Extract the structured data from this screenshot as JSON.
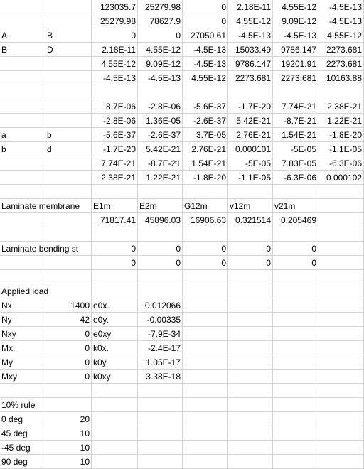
{
  "rows": [
    [
      {
        "c": "",
        "k": "t"
      },
      {
        "c": "",
        "k": "t"
      },
      {
        "c": "123035.7",
        "k": "n"
      },
      {
        "c": "25279.98",
        "k": "n"
      },
      {
        "c": "0",
        "k": "n"
      },
      {
        "c": "2.18E-11",
        "k": "n"
      },
      {
        "c": "4.55E-12",
        "k": "n"
      },
      {
        "c": "-4.5E-13",
        "k": "n"
      }
    ],
    [
      {
        "c": "",
        "k": "t"
      },
      {
        "c": "",
        "k": "t"
      },
      {
        "c": "25279.98",
        "k": "n"
      },
      {
        "c": "78627.9",
        "k": "n"
      },
      {
        "c": "0",
        "k": "n"
      },
      {
        "c": "4.55E-12",
        "k": "n"
      },
      {
        "c": "9.09E-12",
        "k": "n"
      },
      {
        "c": "-4.5E-13",
        "k": "n"
      }
    ],
    [
      {
        "c": "A",
        "k": "t"
      },
      {
        "c": "B",
        "k": "t"
      },
      {
        "c": "0",
        "k": "n"
      },
      {
        "c": "0",
        "k": "n"
      },
      {
        "c": "27050.61",
        "k": "n"
      },
      {
        "c": "-4.5E-13",
        "k": "n"
      },
      {
        "c": "-4.5E-13",
        "k": "n"
      },
      {
        "c": "4.55E-12",
        "k": "n"
      }
    ],
    [
      {
        "c": "B",
        "k": "t"
      },
      {
        "c": "D",
        "k": "t"
      },
      {
        "c": "2.18E-11",
        "k": "n"
      },
      {
        "c": "4.55E-12",
        "k": "n"
      },
      {
        "c": "-4.5E-13",
        "k": "n"
      },
      {
        "c": "15033.49",
        "k": "n"
      },
      {
        "c": "9786.147",
        "k": "n"
      },
      {
        "c": "2273.681",
        "k": "n"
      }
    ],
    [
      {
        "c": "",
        "k": "t"
      },
      {
        "c": "",
        "k": "t"
      },
      {
        "c": "4.55E-12",
        "k": "n"
      },
      {
        "c": "9.09E-12",
        "k": "n"
      },
      {
        "c": "-4.5E-13",
        "k": "n"
      },
      {
        "c": "9786.147",
        "k": "n"
      },
      {
        "c": "19201.91",
        "k": "n"
      },
      {
        "c": "2273.681",
        "k": "n"
      }
    ],
    [
      {
        "c": "",
        "k": "t"
      },
      {
        "c": "",
        "k": "t"
      },
      {
        "c": "-4.5E-13",
        "k": "n"
      },
      {
        "c": "-4.5E-13",
        "k": "n"
      },
      {
        "c": "4.55E-12",
        "k": "n"
      },
      {
        "c": "2273.681",
        "k": "n"
      },
      {
        "c": "2273.681",
        "k": "n"
      },
      {
        "c": "10163.88",
        "k": "n"
      }
    ],
    [
      {
        "c": "",
        "k": "t"
      },
      {
        "c": "",
        "k": "t"
      },
      {
        "c": "",
        "k": "t"
      },
      {
        "c": "",
        "k": "t"
      },
      {
        "c": "",
        "k": "t"
      },
      {
        "c": "",
        "k": "t"
      },
      {
        "c": "",
        "k": "t"
      },
      {
        "c": "",
        "k": "t"
      }
    ],
    [
      {
        "c": "",
        "k": "t"
      },
      {
        "c": "",
        "k": "t"
      },
      {
        "c": "8.7E-06",
        "k": "n"
      },
      {
        "c": "-2.8E-06",
        "k": "n"
      },
      {
        "c": "-5.6E-37",
        "k": "n"
      },
      {
        "c": "-1.7E-20",
        "k": "n"
      },
      {
        "c": "7.74E-21",
        "k": "n"
      },
      {
        "c": "2.38E-21",
        "k": "n"
      }
    ],
    [
      {
        "c": "",
        "k": "t"
      },
      {
        "c": "",
        "k": "t"
      },
      {
        "c": "-2.8E-06",
        "k": "n"
      },
      {
        "c": "1.36E-05",
        "k": "n"
      },
      {
        "c": "-2.6E-37",
        "k": "n"
      },
      {
        "c": "5.42E-21",
        "k": "n"
      },
      {
        "c": "-8.7E-21",
        "k": "n"
      },
      {
        "c": "1.22E-21",
        "k": "n"
      }
    ],
    [
      {
        "c": "a",
        "k": "t"
      },
      {
        "c": "b",
        "k": "t"
      },
      {
        "c": "-5.6E-37",
        "k": "n"
      },
      {
        "c": "-2.6E-37",
        "k": "n"
      },
      {
        "c": "3.7E-05",
        "k": "n"
      },
      {
        "c": "2.76E-21",
        "k": "n"
      },
      {
        "c": "1.54E-21",
        "k": "n"
      },
      {
        "c": "-1.8E-20",
        "k": "n"
      }
    ],
    [
      {
        "c": "b",
        "k": "t"
      },
      {
        "c": "d",
        "k": "t"
      },
      {
        "c": "-1.7E-20",
        "k": "n"
      },
      {
        "c": "5.42E-21",
        "k": "n"
      },
      {
        "c": "2.76E-21",
        "k": "n"
      },
      {
        "c": "0.000101",
        "k": "n"
      },
      {
        "c": "-5E-05",
        "k": "n"
      },
      {
        "c": "-1.1E-05",
        "k": "n"
      }
    ],
    [
      {
        "c": "",
        "k": "t"
      },
      {
        "c": "",
        "k": "t"
      },
      {
        "c": "7.74E-21",
        "k": "n"
      },
      {
        "c": "-8.7E-21",
        "k": "n"
      },
      {
        "c": "1.54E-21",
        "k": "n"
      },
      {
        "c": "-5E-05",
        "k": "n"
      },
      {
        "c": "7.83E-05",
        "k": "n"
      },
      {
        "c": "-6.3E-06",
        "k": "n"
      }
    ],
    [
      {
        "c": "",
        "k": "t"
      },
      {
        "c": "",
        "k": "t"
      },
      {
        "c": "2.38E-21",
        "k": "n"
      },
      {
        "c": "1.22E-21",
        "k": "n"
      },
      {
        "c": "-1.8E-20",
        "k": "n"
      },
      {
        "c": "-1.1E-05",
        "k": "n"
      },
      {
        "c": "-6.3E-06",
        "k": "n"
      },
      {
        "c": "0.000102",
        "k": "n"
      }
    ],
    [
      {
        "c": "",
        "k": "t"
      },
      {
        "c": "",
        "k": "t"
      },
      {
        "c": "",
        "k": "t"
      },
      {
        "c": "",
        "k": "t"
      },
      {
        "c": "",
        "k": "t"
      },
      {
        "c": "",
        "k": "t"
      },
      {
        "c": "",
        "k": "t"
      },
      {
        "c": "",
        "k": "t"
      }
    ],
    [
      {
        "c": "Laminate membrane",
        "k": "o"
      },
      {
        "c": "",
        "k": "t"
      },
      {
        "c": "E1m",
        "k": "t"
      },
      {
        "c": "E2m",
        "k": "t"
      },
      {
        "c": "G12m",
        "k": "t"
      },
      {
        "c": "v12m",
        "k": "t"
      },
      {
        "c": "v21m",
        "k": "t"
      },
      {
        "c": "",
        "k": "t"
      }
    ],
    [
      {
        "c": "",
        "k": "t"
      },
      {
        "c": "",
        "k": "t"
      },
      {
        "c": "71817.41",
        "k": "n"
      },
      {
        "c": "45896.03",
        "k": "n"
      },
      {
        "c": "16906.63",
        "k": "n"
      },
      {
        "c": "0.321514",
        "k": "n"
      },
      {
        "c": "0.205469",
        "k": "n"
      },
      {
        "c": "",
        "k": "t"
      }
    ],
    [
      {
        "c": "",
        "k": "t"
      },
      {
        "c": "",
        "k": "t"
      },
      {
        "c": "",
        "k": "t"
      },
      {
        "c": "",
        "k": "t"
      },
      {
        "c": "",
        "k": "t"
      },
      {
        "c": "",
        "k": "t"
      },
      {
        "c": "",
        "k": "t"
      },
      {
        "c": "",
        "k": "t"
      }
    ],
    [
      {
        "c": "Laminate bending st",
        "k": "o"
      },
      {
        "c": "",
        "k": "t"
      },
      {
        "c": "0",
        "k": "n"
      },
      {
        "c": "0",
        "k": "n"
      },
      {
        "c": "0",
        "k": "n"
      },
      {
        "c": "0",
        "k": "n"
      },
      {
        "c": "0",
        "k": "n"
      },
      {
        "c": "",
        "k": "t"
      }
    ],
    [
      {
        "c": "",
        "k": "t"
      },
      {
        "c": "",
        "k": "t"
      },
      {
        "c": "0",
        "k": "n"
      },
      {
        "c": "0",
        "k": "n"
      },
      {
        "c": "0",
        "k": "n"
      },
      {
        "c": "0",
        "k": "n"
      },
      {
        "c": "0",
        "k": "n"
      },
      {
        "c": "",
        "k": "t"
      }
    ],
    [
      {
        "c": "",
        "k": "t"
      },
      {
        "c": "",
        "k": "t"
      },
      {
        "c": "",
        "k": "t"
      },
      {
        "c": "",
        "k": "t"
      },
      {
        "c": "",
        "k": "t"
      },
      {
        "c": "",
        "k": "t"
      },
      {
        "c": "",
        "k": "t"
      },
      {
        "c": "",
        "k": "t"
      }
    ],
    [
      {
        "c": "Applied load",
        "k": "o"
      },
      {
        "c": "",
        "k": "t"
      },
      {
        "c": "",
        "k": "t"
      },
      {
        "c": "",
        "k": "t"
      },
      {
        "c": "",
        "k": "t"
      },
      {
        "c": "",
        "k": "t"
      },
      {
        "c": "",
        "k": "t"
      },
      {
        "c": "",
        "k": "t"
      }
    ],
    [
      {
        "c": "Nx",
        "k": "t"
      },
      {
        "c": "1400",
        "k": "n"
      },
      {
        "c": "e0x.",
        "k": "t"
      },
      {
        "c": "0.012066",
        "k": "n"
      },
      {
        "c": "",
        "k": "t"
      },
      {
        "c": "",
        "k": "t"
      },
      {
        "c": "",
        "k": "t"
      },
      {
        "c": "",
        "k": "t"
      }
    ],
    [
      {
        "c": "Ny",
        "k": "t"
      },
      {
        "c": "42",
        "k": "n"
      },
      {
        "c": "e0y.",
        "k": "t"
      },
      {
        "c": "-0.00335",
        "k": "n"
      },
      {
        "c": "",
        "k": "t"
      },
      {
        "c": "",
        "k": "t"
      },
      {
        "c": "",
        "k": "t"
      },
      {
        "c": "",
        "k": "t"
      }
    ],
    [
      {
        "c": "Nxy",
        "k": "t"
      },
      {
        "c": "0",
        "k": "n"
      },
      {
        "c": "e0xy",
        "k": "t"
      },
      {
        "c": "-7.9E-34",
        "k": "n"
      },
      {
        "c": "",
        "k": "t"
      },
      {
        "c": "",
        "k": "t"
      },
      {
        "c": "",
        "k": "t"
      },
      {
        "c": "",
        "k": "t"
      }
    ],
    [
      {
        "c": "Mx.",
        "k": "t"
      },
      {
        "c": "0",
        "k": "n"
      },
      {
        "c": "k0x.",
        "k": "t"
      },
      {
        "c": "-2.4E-17",
        "k": "n"
      },
      {
        "c": "",
        "k": "t"
      },
      {
        "c": "",
        "k": "t"
      },
      {
        "c": "",
        "k": "t"
      },
      {
        "c": "",
        "k": "t"
      }
    ],
    [
      {
        "c": "My",
        "k": "t"
      },
      {
        "c": "0",
        "k": "n"
      },
      {
        "c": "k0y",
        "k": "t"
      },
      {
        "c": "1.05E-17",
        "k": "n"
      },
      {
        "c": "",
        "k": "t"
      },
      {
        "c": "",
        "k": "t"
      },
      {
        "c": "",
        "k": "t"
      },
      {
        "c": "",
        "k": "t"
      }
    ],
    [
      {
        "c": "Mxy",
        "k": "t"
      },
      {
        "c": "0",
        "k": "n"
      },
      {
        "c": "k0xy",
        "k": "t"
      },
      {
        "c": "3.38E-18",
        "k": "n"
      },
      {
        "c": "",
        "k": "t"
      },
      {
        "c": "",
        "k": "t"
      },
      {
        "c": "",
        "k": "t"
      },
      {
        "c": "",
        "k": "t"
      }
    ],
    [
      {
        "c": "",
        "k": "t"
      },
      {
        "c": "",
        "k": "t"
      },
      {
        "c": "",
        "k": "t"
      },
      {
        "c": "",
        "k": "t"
      },
      {
        "c": "",
        "k": "t"
      },
      {
        "c": "",
        "k": "t"
      },
      {
        "c": "",
        "k": "t"
      },
      {
        "c": "",
        "k": "t"
      }
    ],
    [
      {
        "c": "10% rule",
        "k": "o"
      },
      {
        "c": "",
        "k": "t"
      },
      {
        "c": "",
        "k": "t"
      },
      {
        "c": "",
        "k": "t"
      },
      {
        "c": "",
        "k": "t"
      },
      {
        "c": "",
        "k": "t"
      },
      {
        "c": "",
        "k": "t"
      },
      {
        "c": "",
        "k": "t"
      }
    ],
    [
      {
        "c": "0 deg",
        "k": "t"
      },
      {
        "c": "20",
        "k": "n"
      },
      {
        "c": "",
        "k": "t"
      },
      {
        "c": "",
        "k": "t"
      },
      {
        "c": "",
        "k": "t"
      },
      {
        "c": "",
        "k": "t"
      },
      {
        "c": "",
        "k": "t"
      },
      {
        "c": "",
        "k": "t"
      }
    ],
    [
      {
        "c": "45 deg",
        "k": "t"
      },
      {
        "c": "10",
        "k": "n"
      },
      {
        "c": "",
        "k": "t"
      },
      {
        "c": "",
        "k": "t"
      },
      {
        "c": "",
        "k": "t"
      },
      {
        "c": "",
        "k": "t"
      },
      {
        "c": "",
        "k": "t"
      },
      {
        "c": "",
        "k": "t"
      }
    ],
    [
      {
        "c": "-45 deg",
        "k": "t"
      },
      {
        "c": "10",
        "k": "n"
      },
      {
        "c": "",
        "k": "t"
      },
      {
        "c": "",
        "k": "t"
      },
      {
        "c": "",
        "k": "t"
      },
      {
        "c": "",
        "k": "t"
      },
      {
        "c": "",
        "k": "t"
      },
      {
        "c": "",
        "k": "t"
      }
    ],
    [
      {
        "c": "90 deg",
        "k": "t"
      },
      {
        "c": "10",
        "k": "n"
      },
      {
        "c": "",
        "k": "t"
      },
      {
        "c": "",
        "k": "t"
      },
      {
        "c": "",
        "k": "t"
      },
      {
        "c": "",
        "k": "t"
      },
      {
        "c": "",
        "k": "t"
      },
      {
        "c": "",
        "k": "t"
      }
    ]
  ]
}
